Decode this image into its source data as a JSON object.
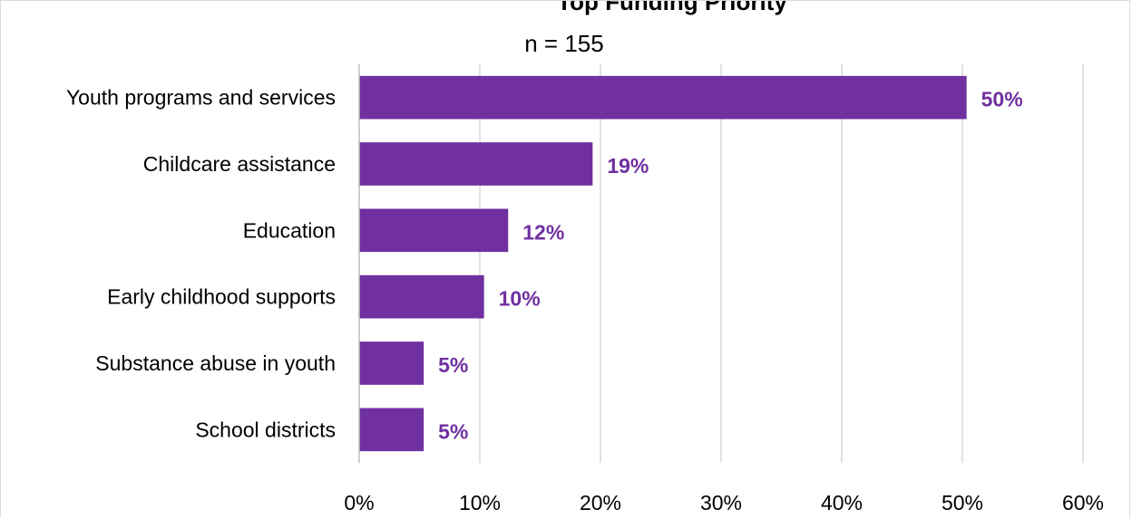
{
  "chart_data": {
    "type": "bar",
    "orientation": "horizontal",
    "title": "Top Funding Priority",
    "subtitle": "n = 155",
    "categories": [
      "Youth programs and services",
      "Childcare assistance",
      "Education",
      "Early childhood supports",
      "Substance abuse in youth",
      "School districts"
    ],
    "values": [
      50,
      19,
      12,
      10,
      5,
      5
    ],
    "value_labels": [
      "50%",
      "19%",
      "12%",
      "10%",
      "5%",
      "5%"
    ],
    "xlim": [
      0,
      60
    ],
    "x_ticks": [
      0,
      10,
      20,
      30,
      40,
      50,
      60
    ],
    "x_tick_labels": [
      "0%",
      "10%",
      "20%",
      "30%",
      "40%",
      "50%",
      "60%"
    ],
    "grid": true,
    "legend": "none",
    "colors": {
      "bar": "#7030a0",
      "value_label": "#7030a0",
      "grid": "#d9d9d9",
      "axis": "#bfbfbf"
    }
  }
}
